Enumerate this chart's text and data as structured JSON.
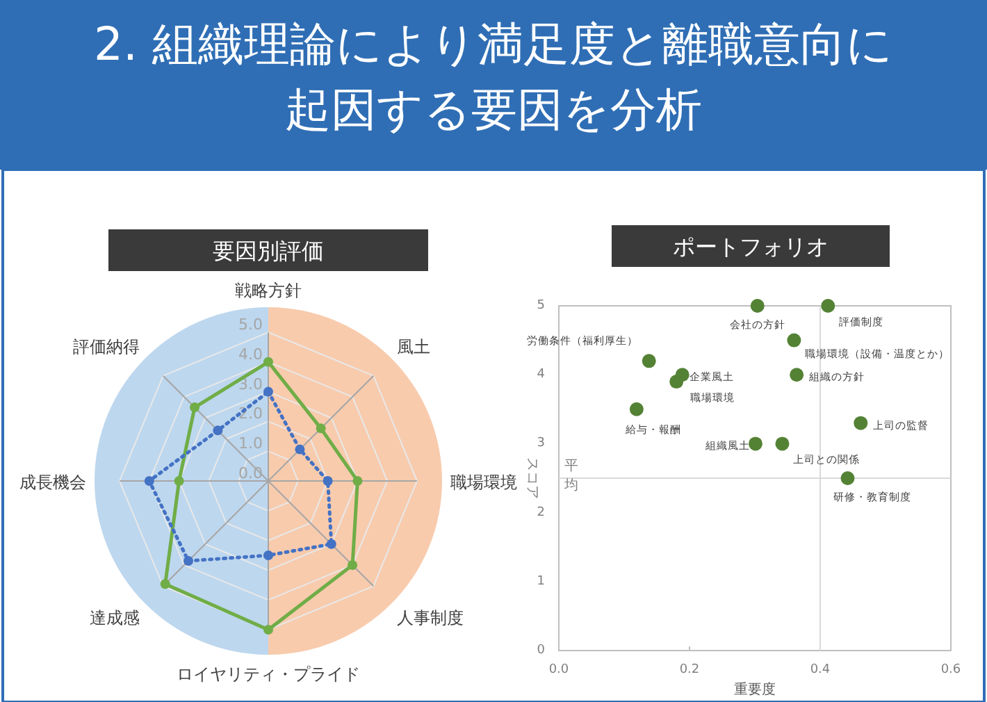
{
  "chart_data": [
    {
      "type": "other",
      "title": "2. 組織理論により満足度と離職意向に起因する要因を分析"
    },
    {
      "type": "radar",
      "title": "要因別評価",
      "categories": [
        "戦略方針",
        "風土",
        "職場環境",
        "人事制度",
        "ロイヤリティ・プライド",
        "達成感",
        "成長機会",
        "評価納得"
      ],
      "series": [
        {
          "color": "#70ad47",
          "line_style": "solid",
          "values": [
            4.0,
            2.5,
            3.0,
            4.0,
            5.0,
            4.9,
            3.0,
            3.5
          ]
        },
        {
          "color": "#4472c4",
          "line_style": "dotted",
          "values": [
            3.0,
            1.5,
            2.0,
            3.0,
            2.5,
            3.8,
            4.0,
            2.4
          ]
        }
      ],
      "ylim": [
        0,
        5
      ],
      "yticks": [
        {
          "value": 0,
          "label": "0.0"
        },
        {
          "value": 1,
          "label": "1.0"
        },
        {
          "value": 2,
          "label": "2.0"
        },
        {
          "value": 3,
          "label": "3.0"
        },
        {
          "value": 4,
          "label": "4.0"
        },
        {
          "value": 5,
          "label": "5.0"
        }
      ],
      "marker": "circle",
      "grid": true
    },
    {
      "type": "scatter",
      "title": "ポートフォリオ",
      "xlabel": "重要度",
      "ylabel": "スコア",
      "series": [
        {
          "color": "#548235",
          "x": [
            0.304,
            0.412,
            0.36,
            0.364,
            0.138,
            0.189,
            0.18,
            0.119,
            0.462,
            0.301,
            0.342,
            0.442
          ],
          "values": [
            5.0,
            5.0,
            4.5,
            4.0,
            4.2,
            4.0,
            3.9,
            3.5,
            3.3,
            3.0,
            3.0,
            2.5
          ]
        }
      ],
      "xlim": [
        0,
        0.6
      ],
      "xticks": [
        {
          "value": 0,
          "label": "0.0"
        },
        {
          "value": 0.2,
          "label": "0.2"
        },
        {
          "value": 0.4,
          "label": "0.4"
        },
        {
          "value": 0.6,
          "label": "0.6"
        }
      ],
      "ylim": [
        0,
        5
      ],
      "yticks": [
        0,
        1,
        2,
        3,
        4,
        5
      ],
      "ref_lines": [
        {
          "axis": "y",
          "value": 2.5,
          "label": "平均",
          "color": "#d9d9d9"
        },
        {
          "axis": "x",
          "value": 0.4,
          "color": "#d9d9d9"
        }
      ],
      "annotations": [
        {
          "text": "会社の方針",
          "x": 0.304,
          "y": 5.0
        },
        {
          "text": "評価制度",
          "x": 0.412,
          "y": 5.0
        },
        {
          "text": "職場環境（設備・温度とか）",
          "x": 0.36,
          "y": 4.5
        },
        {
          "text": "組織の方針",
          "x": 0.364,
          "y": 4.0
        },
        {
          "text": "労働条件（福利厚生）",
          "x": 0.138,
          "y": 4.2
        },
        {
          "text": "企業風土",
          "x": 0.189,
          "y": 4.0
        },
        {
          "text": "職場環境",
          "x": 0.18,
          "y": 3.9
        },
        {
          "text": "給与・報酬",
          "x": 0.119,
          "y": 3.5
        },
        {
          "text": "上司の監督",
          "x": 0.462,
          "y": 3.3
        },
        {
          "text": "組織風土",
          "x": 0.301,
          "y": 3.0
        },
        {
          "text": "上司との関係",
          "x": 0.342,
          "y": 3.0
        },
        {
          "text": "研修・教育制度",
          "x": 0.442,
          "y": 2.5
        }
      ],
      "marker": "circle",
      "grid": false
    }
  ]
}
